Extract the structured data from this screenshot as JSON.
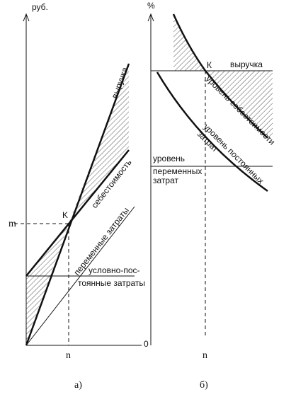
{
  "left": {
    "y_axis_label": "руб.",
    "m_label": "m",
    "k_label": "K",
    "n_label": "n",
    "revenue_label": "выручка",
    "cost_label": "себестоимость",
    "variable_label": "переменные затраты",
    "fixed_label_1": "условно-пос-",
    "fixed_label_2": "тоянные затраты",
    "caption": "а)"
  },
  "right": {
    "y_axis_label": "%",
    "k_label": "К",
    "revenue_label": "выручка",
    "cost_level_label": "уровень себестоимости",
    "fixed_level_label_1": "уровень постоянных",
    "fixed_level_label_2": "затрат",
    "variable_label_1": "уровень",
    "variable_label_2": "переменных",
    "variable_label_3": "затрат",
    "zero_label": "0",
    "n_label": "n",
    "caption": "б)"
  }
}
